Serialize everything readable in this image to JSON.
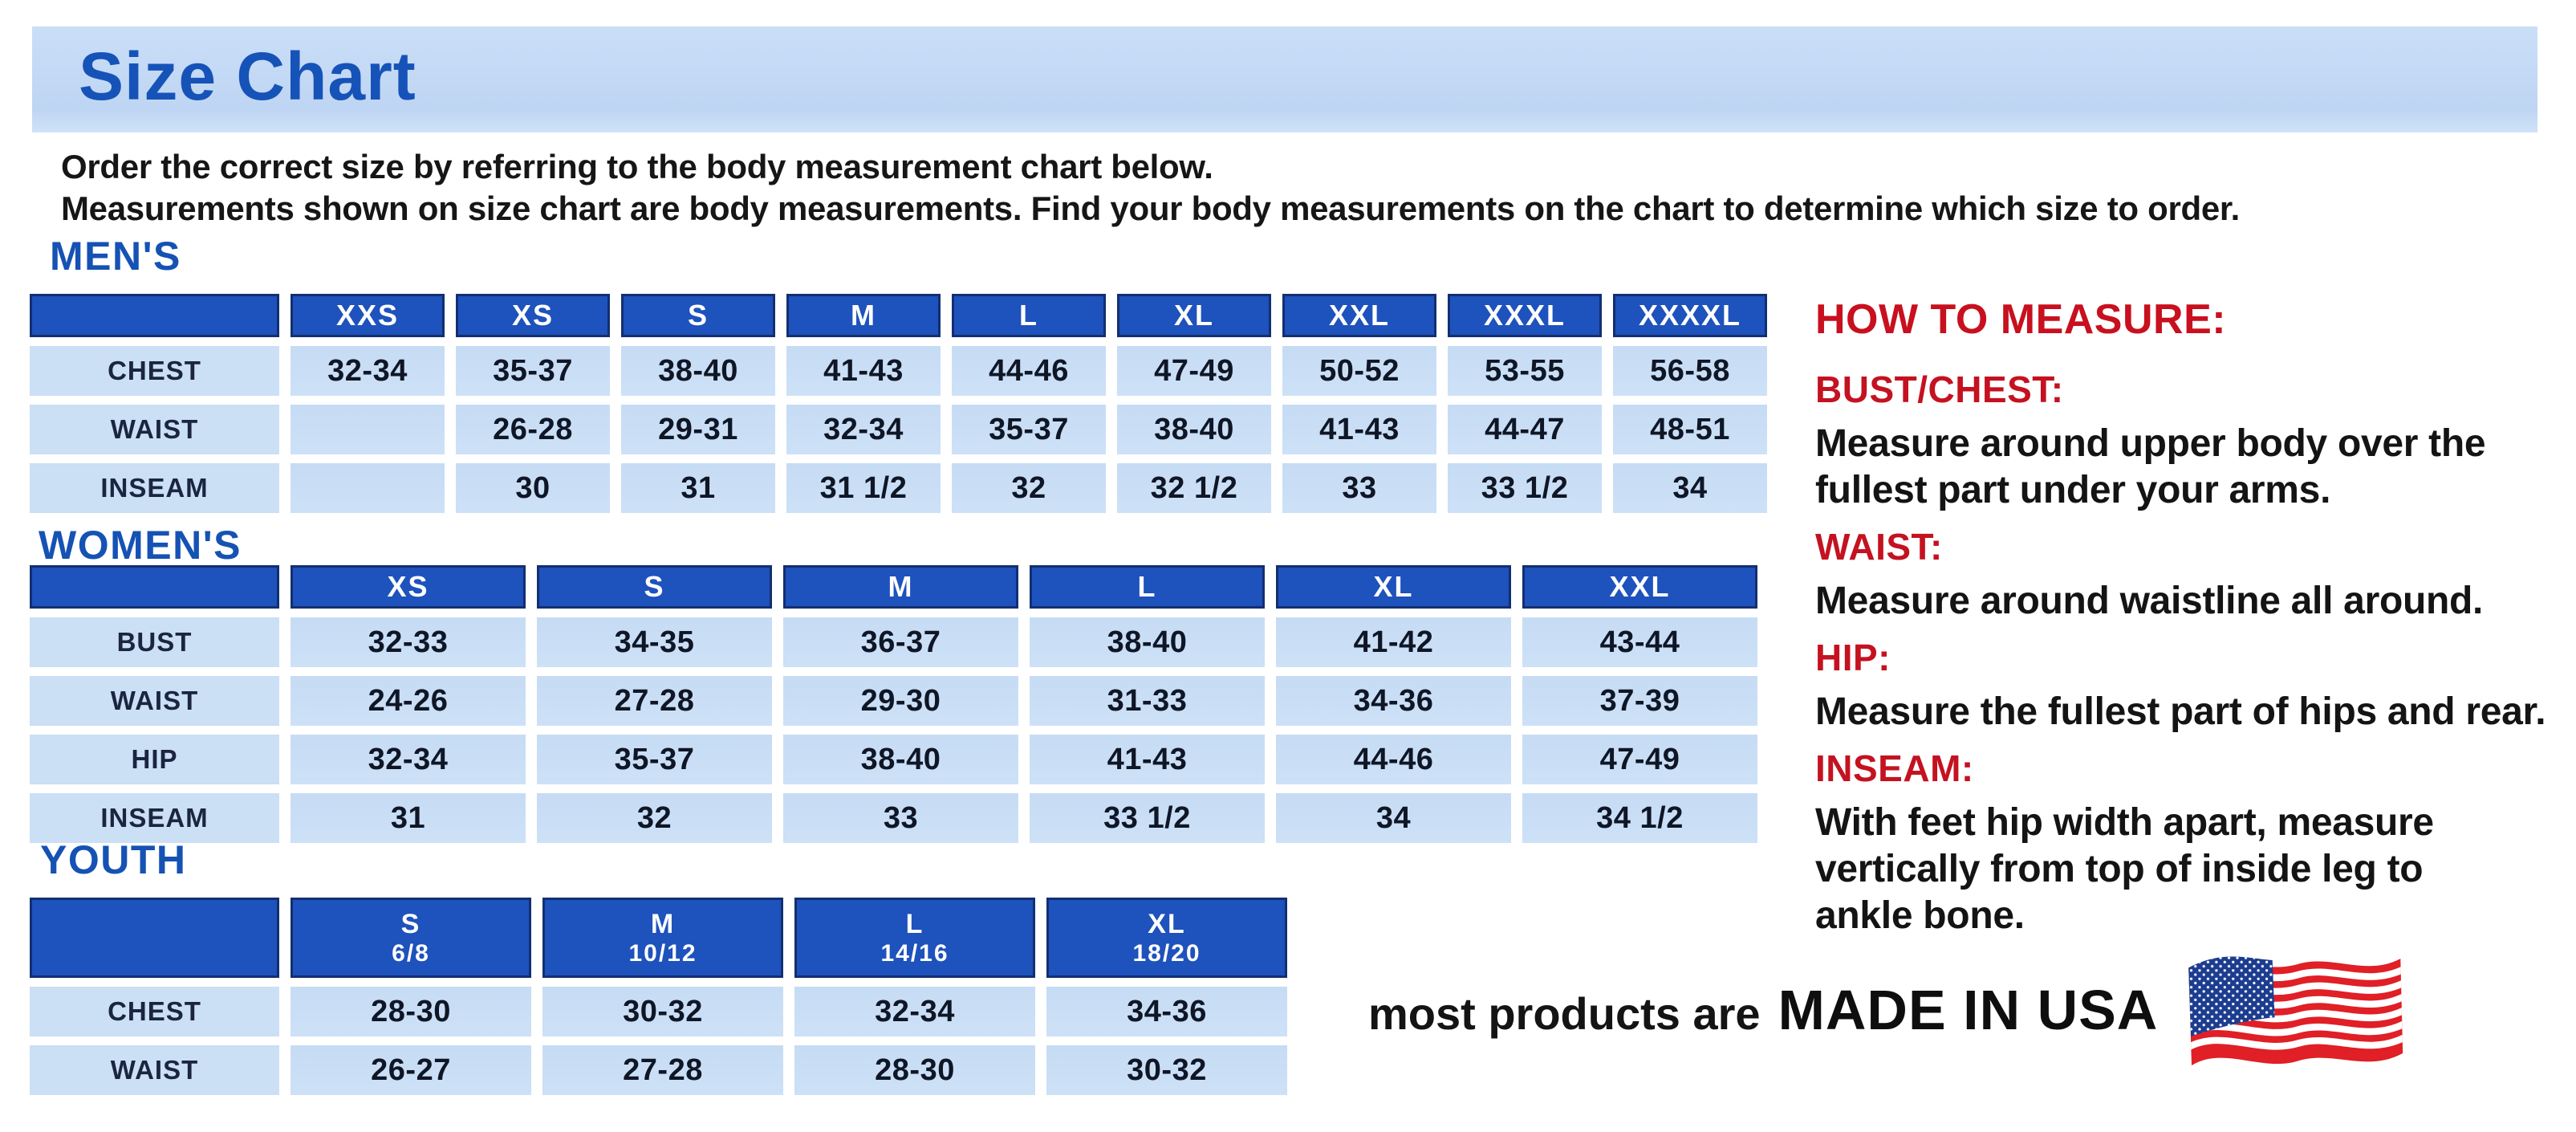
{
  "page": {
    "title": "Size Chart",
    "intro_lines": [
      "Order the correct size by referring to the body measurement chart below.",
      "Measurements shown on size chart are body measurements.  Find your body measurements on the chart to determine which size to order."
    ]
  },
  "colors": {
    "banner_blue": "#c4daf5",
    "header_blue": "#1e52bc",
    "cell_blue": "#cbdff5",
    "heading_blue": "#1552b4",
    "navy_border": "#122f72",
    "accent_red": "#c8101e",
    "flag_red": "#e01f26",
    "flag_blue": "#1c3d8f"
  },
  "tables": {
    "mens": {
      "heading": "MEN'S",
      "columns": [
        "XXS",
        "XS",
        "S",
        "M",
        "L",
        "XL",
        "XXL",
        "XXXL",
        "XXXXL"
      ],
      "rows": [
        {
          "label": "CHEST",
          "values": [
            "32-34",
            "35-37",
            "38-40",
            "41-43",
            "44-46",
            "47-49",
            "50-52",
            "53-55",
            "56-58"
          ]
        },
        {
          "label": "WAIST",
          "values": [
            "",
            "26-28",
            "29-31",
            "32-34",
            "35-37",
            "38-40",
            "41-43",
            "44-47",
            "48-51"
          ]
        },
        {
          "label": "INSEAM",
          "values": [
            "",
            "30",
            "31",
            "31 1/2",
            "32",
            "32 1/2",
            "33",
            "33 1/2",
            "34"
          ]
        }
      ]
    },
    "womens": {
      "heading": "WOMEN'S",
      "columns": [
        "XS",
        "S",
        "M",
        "L",
        "XL",
        "XXL"
      ],
      "rows": [
        {
          "label": "BUST",
          "values": [
            "32-33",
            "34-35",
            "36-37",
            "38-40",
            "41-42",
            "43-44"
          ]
        },
        {
          "label": "WAIST",
          "values": [
            "24-26",
            "27-28",
            "29-30",
            "31-33",
            "34-36",
            "37-39"
          ]
        },
        {
          "label": "HIP",
          "values": [
            "32-34",
            "35-37",
            "38-40",
            "41-43",
            "44-46",
            "47-49"
          ]
        },
        {
          "label": "INSEAM",
          "values": [
            "31",
            "32",
            "33",
            "33 1/2",
            "34",
            "34 1/2"
          ]
        }
      ]
    },
    "youth": {
      "heading": "YOUTH",
      "columns": [
        {
          "size": "S",
          "ages": "6/8"
        },
        {
          "size": "M",
          "ages": "10/12"
        },
        {
          "size": "L",
          "ages": "14/16"
        },
        {
          "size": "XL",
          "ages": "18/20"
        }
      ],
      "rows": [
        {
          "label": "CHEST",
          "values": [
            "28-30",
            "30-32",
            "32-34",
            "34-36"
          ]
        },
        {
          "label": "WAIST",
          "values": [
            "26-27",
            "27-28",
            "28-30",
            "30-32"
          ]
        }
      ]
    }
  },
  "how_to_measure": {
    "heading": "HOW TO MEASURE:",
    "sections": [
      {
        "label": "BUST/CHEST:",
        "lines": [
          "Measure around upper body over the",
          "fullest part under your arms."
        ]
      },
      {
        "label": "WAIST:",
        "lines": [
          "Measure around waistline all around."
        ]
      },
      {
        "label": "HIP:",
        "lines": [
          "Measure the fullest part of hips and rear."
        ]
      },
      {
        "label": "INSEAM:",
        "lines": [
          "With feet hip width apart, measure",
          "vertically from top of inside leg to",
          "ankle bone."
        ]
      }
    ]
  },
  "footer": {
    "made_in_prefix": "most products are",
    "made_in": "MADE IN USA",
    "flag_icon": "us-flag-icon"
  }
}
